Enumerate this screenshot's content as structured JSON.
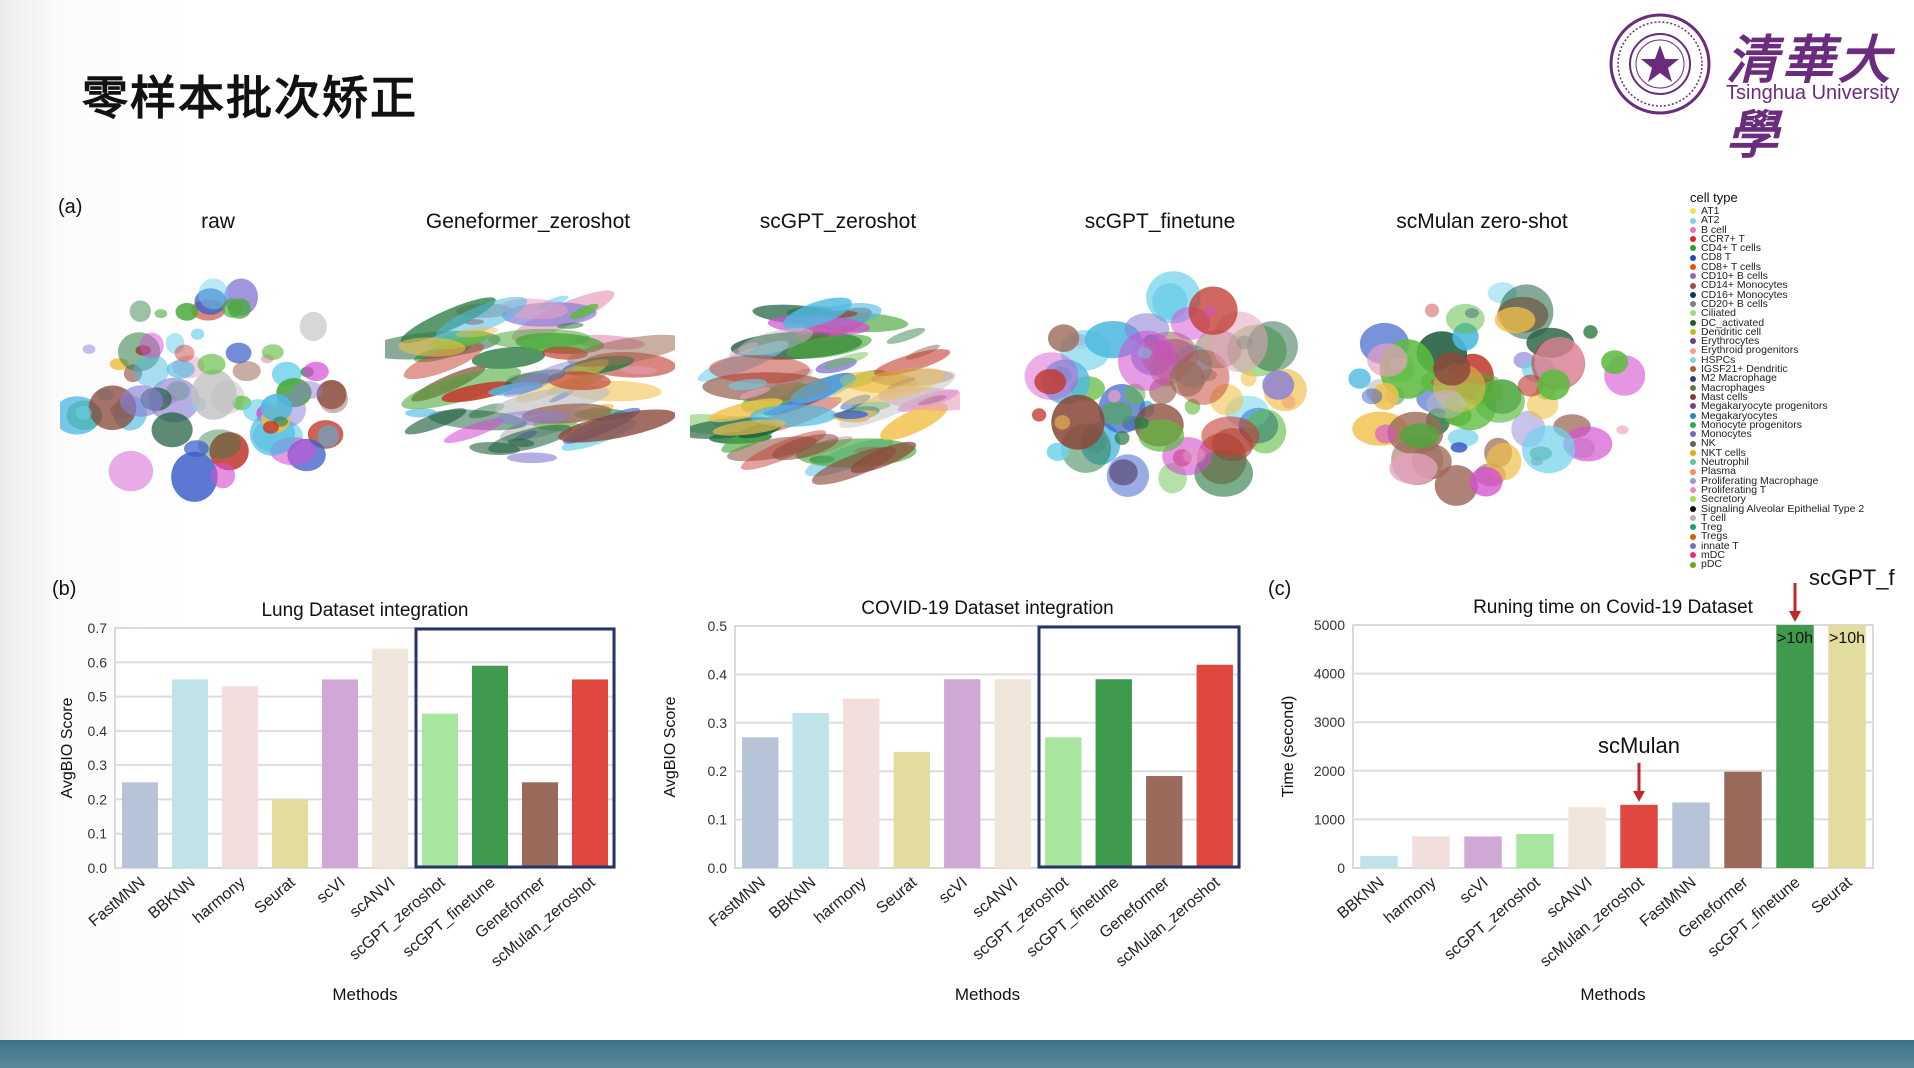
{
  "slide": {
    "title": "零样本批次矫正",
    "logo_cn": "清華大學",
    "logo_en": "Tsinghua University"
  },
  "panel_a": {
    "label": "(a)",
    "umaps": [
      {
        "title": "raw"
      },
      {
        "title": "Geneformer_zeroshot"
      },
      {
        "title": "scGPT_zeroshot"
      },
      {
        "title": "scGPT_finetune"
      },
      {
        "title": "scMulan zero-shot"
      }
    ],
    "legend_title": "cell type",
    "legend_items": [
      {
        "label": "AT1",
        "color": "#f4e04d"
      },
      {
        "label": "AT2",
        "color": "#7fd3e8"
      },
      {
        "label": "B cell",
        "color": "#e377c2"
      },
      {
        "label": "CCR7+ T",
        "color": "#d62728"
      },
      {
        "label": "CD4+ T cells",
        "color": "#2ca02c"
      },
      {
        "label": "CD8 T",
        "color": "#1f4fb4"
      },
      {
        "label": "CD8+ T cells",
        "color": "#e6550d"
      },
      {
        "label": "CD10+ B cells",
        "color": "#9467bd"
      },
      {
        "label": "CD14+ Monocytes",
        "color": "#8c564b"
      },
      {
        "label": "CD16+ Monocytes",
        "color": "#17334f"
      },
      {
        "label": "CD20+ B cells",
        "color": "#7f7f7f"
      },
      {
        "label": "Ciliated",
        "color": "#a4d67c"
      },
      {
        "label": "DC_activated",
        "color": "#1b5e20"
      },
      {
        "label": "Dendritic cell",
        "color": "#bcbd22"
      },
      {
        "label": "Erythrocytes",
        "color": "#6a3d9a"
      },
      {
        "label": "Erythroid progenitors",
        "color": "#fb9a99"
      },
      {
        "label": "HSPCs",
        "color": "#8dd3c7"
      },
      {
        "label": "IGSF21+ Dendritic",
        "color": "#b15928"
      },
      {
        "label": "M2 Macrophage",
        "color": "#393b79"
      },
      {
        "label": "Macrophages",
        "color": "#637939"
      },
      {
        "label": "Mast cells",
        "color": "#843c39"
      },
      {
        "label": "Megakaryocyte progenitors",
        "color": "#7b4173"
      },
      {
        "label": "Megakaryocytes",
        "color": "#3182bd"
      },
      {
        "label": "Monocyte progenitors",
        "color": "#31a354"
      },
      {
        "label": "Monocytes",
        "color": "#756bb1"
      },
      {
        "label": "NK",
        "color": "#636363"
      },
      {
        "label": "NKT cells",
        "color": "#e6ab02"
      },
      {
        "label": "Neutrophil",
        "color": "#66c2a5"
      },
      {
        "label": "Plasma",
        "color": "#fc8d62"
      },
      {
        "label": "Proliferating Macrophage",
        "color": "#8da0cb"
      },
      {
        "label": "Proliferating T",
        "color": "#e78ac3"
      },
      {
        "label": "Secretory",
        "color": "#a6d854"
      },
      {
        "label": "Signaling Alveolar Epithelial Type 2",
        "color": "#111111"
      },
      {
        "label": "T cell",
        "color": "#b3b3b3"
      },
      {
        "label": "Treg",
        "color": "#1b9e77"
      },
      {
        "label": "Tregs",
        "color": "#d95f02"
      },
      {
        "label": "innate T",
        "color": "#7570b3"
      },
      {
        "label": "mDC",
        "color": "#e7298a"
      },
      {
        "label": "pDC",
        "color": "#66a61e"
      }
    ],
    "umap_palette": [
      "#5dbb3f",
      "#4aa93a",
      "#2e7d46",
      "#1f5f3f",
      "#c23b30",
      "#8b4a3c",
      "#6fd2ea",
      "#4fb9e0",
      "#d34fd0",
      "#8a7fd6",
      "#e6a1c0",
      "#9c6b5a",
      "#bfc0bf",
      "#3b5fc9",
      "#f0c04a"
    ]
  },
  "panel_b_label": "(b)",
  "panel_c_label": "(c)",
  "chart_data": [
    {
      "type": "bar",
      "title": "Lung Dataset integration",
      "xlabel": "Methods",
      "ylabel": "AvgBIO Score",
      "ylim": [
        0,
        0.7
      ],
      "yticks": [
        "0.0",
        "0.1",
        "0.2",
        "0.3",
        "0.4",
        "0.5",
        "0.6",
        "0.7"
      ],
      "categories": [
        "FastMNN",
        "BBKNN",
        "harmony",
        "Seurat",
        "scVI",
        "scANVI",
        "scGPT_zeroshot",
        "scGPT_finetune",
        "Geneformer",
        "scMulan_zeroshot"
      ],
      "values": [
        0.25,
        0.55,
        0.53,
        0.2,
        0.55,
        0.64,
        0.45,
        0.59,
        0.25,
        0.55
      ],
      "colors": [
        "#b7c3d8",
        "#bfe3e6",
        "#f2dedd",
        "#e2dc9e",
        "#cfa8d6",
        "#f1e6dc",
        "#a8e6a0",
        "#3f9a4d",
        "#9a6b5a",
        "#e0483f"
      ],
      "highlight_from": 6,
      "highlight_to": 9
    },
    {
      "type": "bar",
      "title": "COVID-19 Dataset integration",
      "xlabel": "Methods",
      "ylabel": "AvgBIO Score",
      "ylim": [
        0,
        0.5
      ],
      "yticks": [
        "0.0",
        "0.1",
        "0.2",
        "0.3",
        "0.4",
        "0.5"
      ],
      "categories": [
        "FastMNN",
        "BBKNN",
        "harmony",
        "Seurat",
        "scVI",
        "scANVI",
        "scGPT_zeroshot",
        "scGPT_finetune",
        "Geneformer",
        "scMulan_zeroshot"
      ],
      "values": [
        0.27,
        0.32,
        0.35,
        0.24,
        0.39,
        0.39,
        0.27,
        0.39,
        0.19,
        0.42
      ],
      "colors": [
        "#b7c3d8",
        "#bfe3e6",
        "#f2dedd",
        "#e2dc9e",
        "#cfa8d6",
        "#f1e6dc",
        "#a8e6a0",
        "#3f9a4d",
        "#9a6b5a",
        "#e0483f"
      ],
      "highlight_from": 6,
      "highlight_to": 9
    },
    {
      "type": "bar",
      "title": "Runing time on Covid-19 Dataset",
      "xlabel": "Methods",
      "ylabel": "Time (second)",
      "ylim": [
        0,
        5000
      ],
      "yticks": [
        "0",
        "1000",
        "2000",
        "3000",
        "4000",
        "5000"
      ],
      "categories": [
        "BBKNN",
        "harmony",
        "scVI",
        "scGPT_zeroshot",
        "scANVI",
        "scMulan_zeroshot",
        "FastMNN",
        "Geneformer",
        "scGPT_finetune",
        "Seurat"
      ],
      "values": [
        250,
        650,
        650,
        700,
        1250,
        1300,
        1350,
        1980,
        5000,
        5000
      ],
      "colors": [
        "#bfe3e6",
        "#f2dedd",
        "#cfa8d6",
        "#a8e6a0",
        "#f1e6dc",
        "#e0483f",
        "#b7c3d8",
        "#9a6b5a",
        "#3f9a4d",
        "#e2dc9e"
      ],
      "bar_labels": [
        "",
        "",
        "",
        "",
        "",
        "",
        "",
        "",
        ">10h",
        ">10h"
      ],
      "annotations": [
        {
          "text": "scMulan",
          "category": "scMulan_zeroshot"
        },
        {
          "text": "scGPT_f",
          "category": "scGPT_finetune"
        }
      ]
    }
  ]
}
